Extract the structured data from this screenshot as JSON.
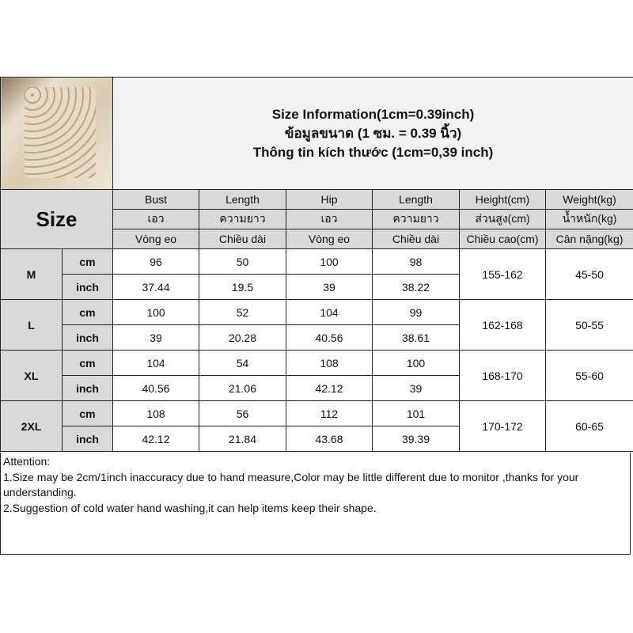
{
  "title_lines": [
    "Size Information(1cm=0.39inch)",
    "ข้อมูลขนาด (1 ซม. = 0.39 นิ้ว)",
    "Thông tin kích thước (1cm=0,39 inch)"
  ],
  "size_label": "Size",
  "headers": [
    [
      "Bust",
      "Length",
      "Hip",
      "Length",
      "Height(cm)",
      "Weight(kg)"
    ],
    [
      "เอว",
      "ความยาว",
      "เอว",
      "ความยาว",
      "ส่วนสูง(cm)",
      "น้ำหนัก(kg)"
    ],
    [
      "Vòng eo",
      "Chiều dài",
      "Vòng eo",
      "Chiều dài",
      "Chiều cao(cm)",
      "Cân nặng(kg)"
    ]
  ],
  "rows": [
    {
      "size": "M",
      "cm": {
        "unit": "cm",
        "values": [
          "96",
          "50",
          "100",
          "98"
        ]
      },
      "inch": {
        "unit": "inch",
        "values": [
          "37.44",
          "19.5",
          "39",
          "38.22"
        ]
      },
      "height": "155-162",
      "weight": "45-50"
    },
    {
      "size": "L",
      "cm": {
        "unit": "cm",
        "values": [
          "100",
          "52",
          "104",
          "99"
        ]
      },
      "inch": {
        "unit": "inch",
        "values": [
          "39",
          "20.28",
          "40.56",
          "38.61"
        ]
      },
      "height": "162-168",
      "weight": "50-55"
    },
    {
      "size": "XL",
      "cm": {
        "unit": "cm",
        "values": [
          "104",
          "54",
          "108",
          "100"
        ]
      },
      "inch": {
        "unit": "inch",
        "values": [
          "40.56",
          "21.06",
          "42.12",
          "39"
        ]
      },
      "height": "168-170",
      "weight": "55-60"
    },
    {
      "size": "2XL",
      "cm": {
        "unit": "cm",
        "values": [
          "108",
          "56",
          "112",
          "101"
        ]
      },
      "inch": {
        "unit": "inch",
        "values": [
          "42.12",
          "21.84",
          "43.68",
          "39.39"
        ]
      },
      "height": "170-172",
      "weight": "60-65"
    }
  ],
  "attention": [
    "Attention:",
    "1.Size may be 2cm/1inch inaccuracy due to hand measure,Color may be little different due to monitor ,thanks for your understanding.",
    "2.Suggestion of cold water hand washing,it can help items keep their shape."
  ]
}
